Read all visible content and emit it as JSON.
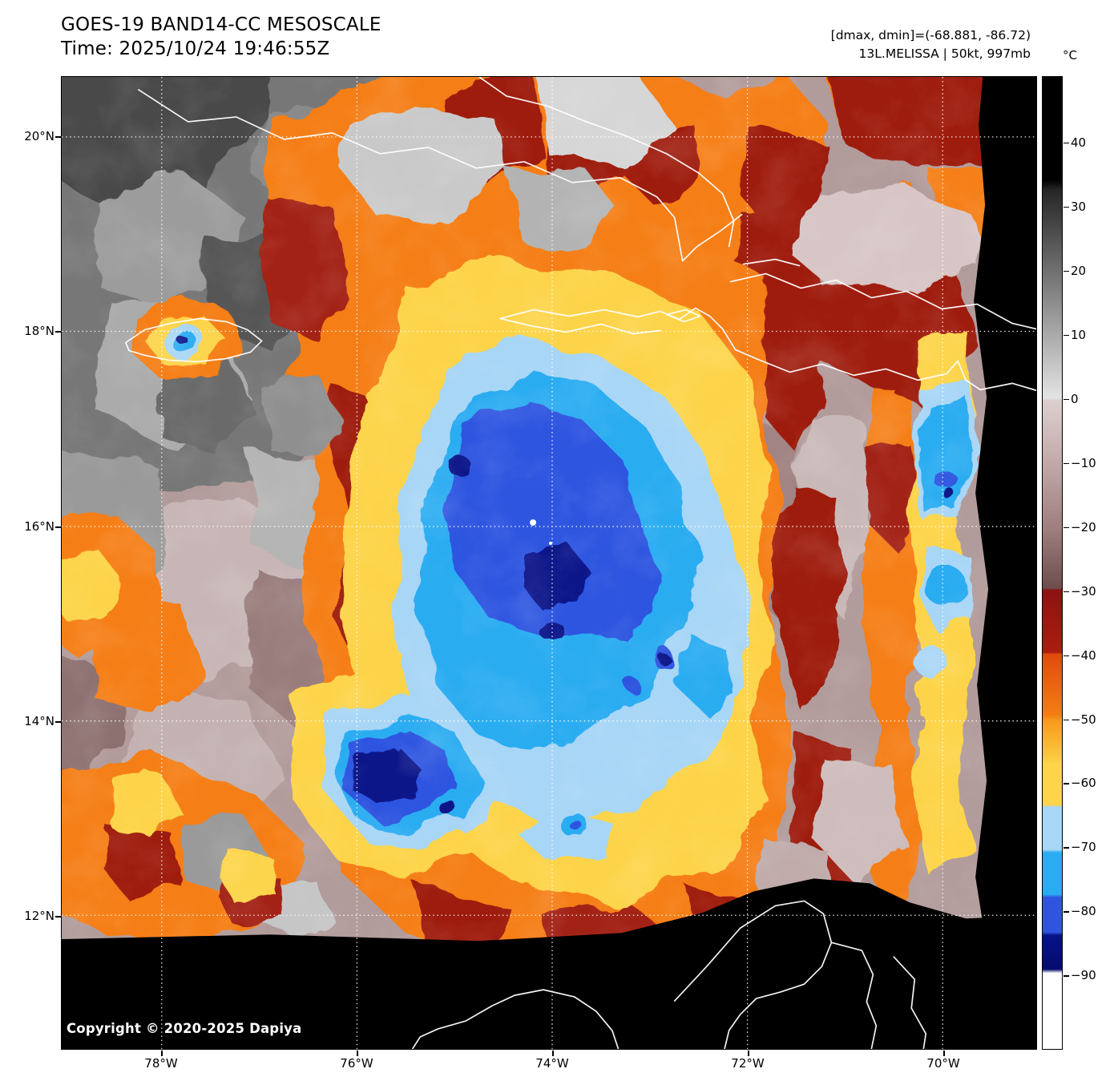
{
  "header": {
    "title": "GOES-19 BAND14-CC MESOSCALE",
    "time": "Time: 2025/10/24 19:46:55Z",
    "range_info": "[dmax, dmin]=(-68.881, -86.72)",
    "storm_info": "13L.MELISSA | 50kt, 997mb"
  },
  "map": {
    "copyright": "Copyright © 2020-2025 Dapiya",
    "lat_labels": [
      "20°N",
      "18°N",
      "16°N",
      "14°N",
      "12°N"
    ],
    "lon_labels": [
      "78°W",
      "76°W",
      "74°W",
      "72°W",
      "70°W"
    ]
  },
  "colorbar": {
    "unit": "°C",
    "tick_labels": [
      "40",
      "30",
      "20",
      "10",
      "0",
      "−10",
      "−20",
      "−30",
      "−40",
      "−50",
      "−60",
      "−70",
      "−80",
      "−90"
    ],
    "palette": {
      "warm_pink_gray": "#b29b9b",
      "dark_red": "#9e1b10",
      "orange": "#f57e14",
      "yellow": "#fdd44a",
      "light_blue": "#a8d6f6",
      "cyan": "#2aacf1",
      "royal_blue": "#2f55e0",
      "navy": "#071289",
      "no_data": "#000000"
    }
  },
  "chart_data": {
    "type": "heatmap",
    "title": "GOES-19 BAND14-CC MESOSCALE",
    "subtitle": "Time: 2025/10/24 19:46:55Z",
    "colorbar_unit": "°C",
    "colorbar_ticks": [
      40,
      30,
      20,
      10,
      0,
      -10,
      -20,
      -30,
      -40,
      -50,
      -60,
      -70,
      -80,
      -90
    ],
    "x_ticks": [
      "78°W",
      "76°W",
      "74°W",
      "72°W",
      "70°W"
    ],
    "y_ticks": [
      "20°N",
      "18°N",
      "16°N",
      "14°N",
      "12°N"
    ],
    "dmax": -68.881,
    "dmin": -86.72,
    "storm_id": "13L.MELISSA",
    "storm_wind": "50kt",
    "storm_pressure": "997mb",
    "legend_position": "right colorbar",
    "grid": "white dotted graticule every 2 degrees"
  }
}
